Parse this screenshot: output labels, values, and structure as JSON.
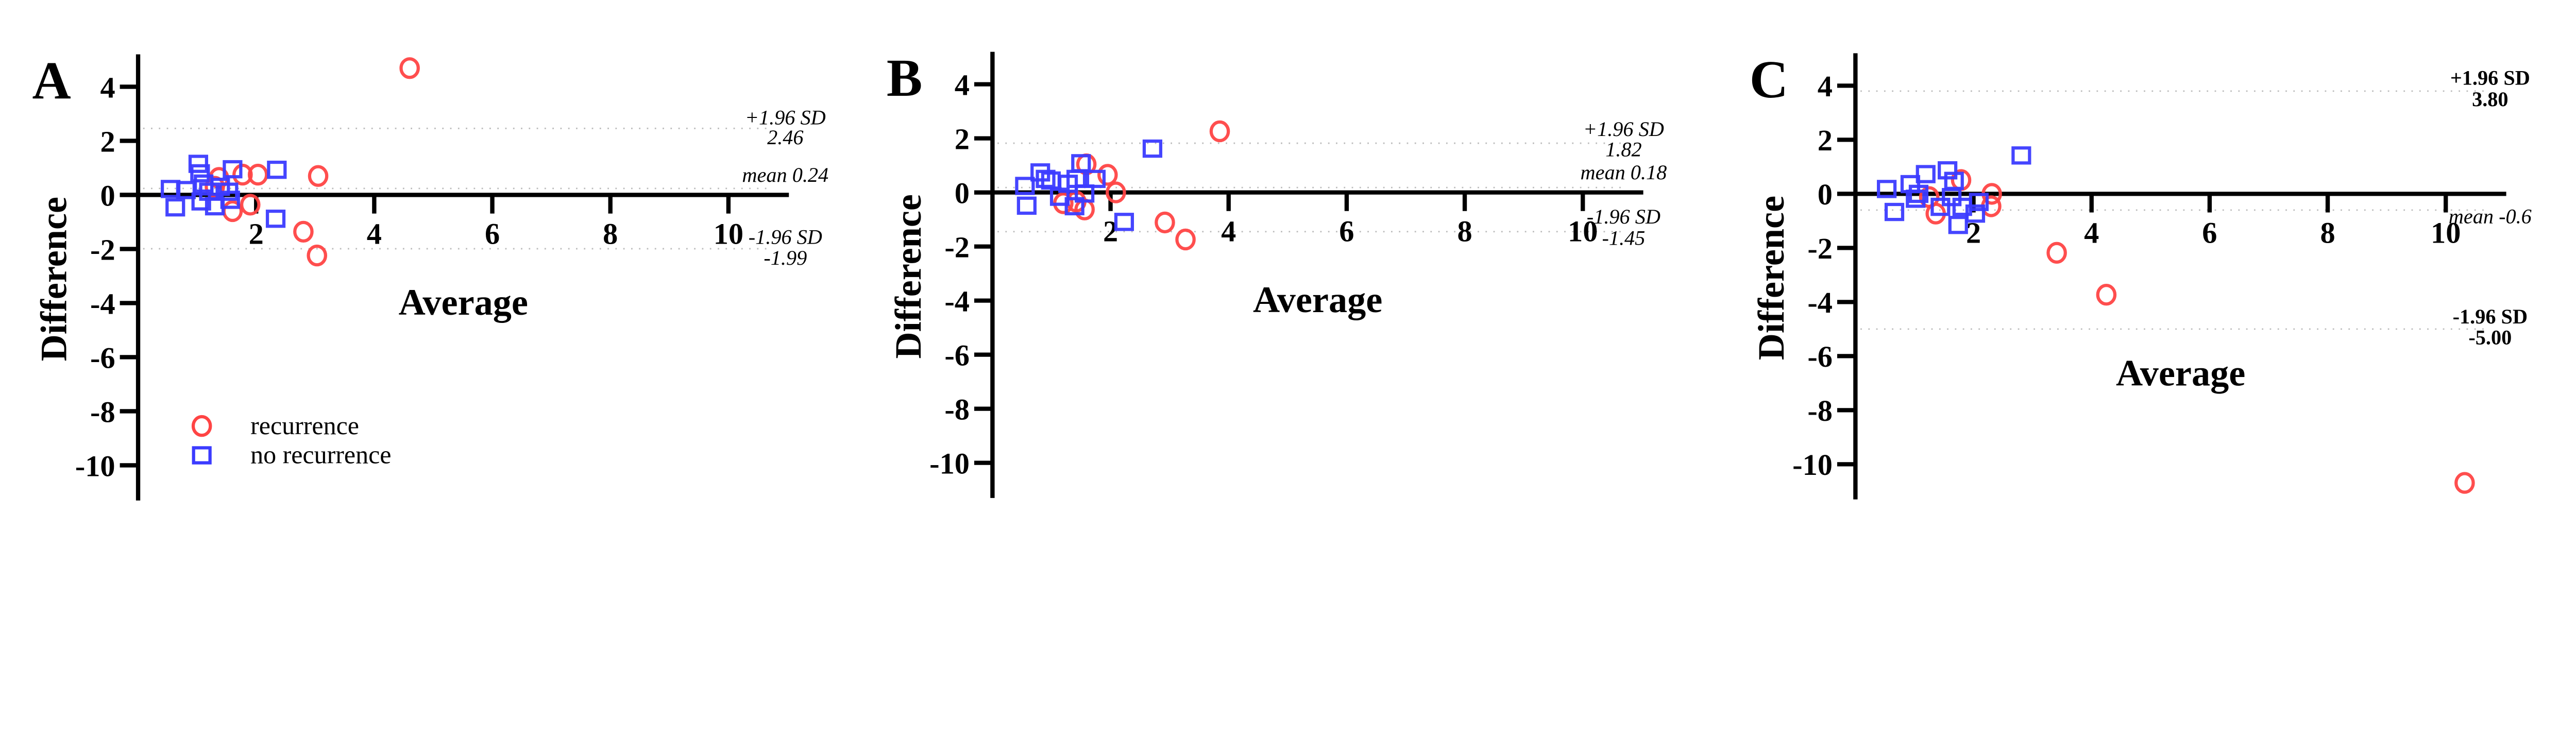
{
  "colors": {
    "recurrence": "#ff4444",
    "no_recurrence": "#3b3bff",
    "axis": "#000000",
    "reference_line": "#bbbbbb"
  },
  "legend": {
    "placement": "bottom-left of panel A",
    "items": [
      {
        "label": "recurrence",
        "marker": "circle"
      },
      {
        "label": "no recurrence",
        "marker": "square"
      }
    ]
  },
  "chart_data": [
    {
      "type": "scatter",
      "panel_label": "A",
      "xlabel": "Average",
      "ylabel": "Difference",
      "xlim": [
        0,
        11
      ],
      "ylim": [
        -11,
        5
      ],
      "x_ticks": [
        "2",
        "4",
        "6",
        "8",
        "10"
      ],
      "y_ticks": [
        "4",
        "2",
        "0",
        "-2",
        "-4",
        "-6",
        "-8",
        "-10"
      ],
      "grid": false,
      "reference_lines": [
        {
          "name": "+1.96 SD",
          "label": "+1.96 SD",
          "value_label": "2.46",
          "y": 2.46
        },
        {
          "name": "mean",
          "label": "mean 0.24",
          "y": 0.24
        },
        {
          "name": "-1.96 SD",
          "label": "-1.96 SD",
          "value_label": "-1.99",
          "y": -1.99
        }
      ],
      "series": [
        {
          "name": "recurrence",
          "marker": "circle",
          "points": [
            [
              4.6,
              4.69
            ],
            [
              3.05,
              0.7
            ],
            [
              2.03,
              0.75
            ],
            [
              1.77,
              0.75
            ],
            [
              1.37,
              0.63
            ],
            [
              1.3,
              0.3
            ],
            [
              1.9,
              -0.36
            ],
            [
              1.6,
              -0.6
            ],
            [
              2.8,
              -1.36
            ],
            [
              3.03,
              -2.24
            ]
          ]
        },
        {
          "name": "no recurrence",
          "marker": "square",
          "points": [
            [
              1.02,
              1.15
            ],
            [
              1.05,
              0.8
            ],
            [
              1.6,
              0.95
            ],
            [
              2.35,
              0.93
            ],
            [
              0.55,
              0.22
            ],
            [
              0.81,
              0.18
            ],
            [
              0.63,
              -0.46
            ],
            [
              1.07,
              -0.24
            ],
            [
              1.3,
              -0.42
            ],
            [
              1.56,
              -0.18
            ],
            [
              2.33,
              -0.88
            ],
            [
              1.2,
              0.12
            ],
            [
              1.39,
              0.3
            ],
            [
              1.53,
              0.12
            ],
            [
              1.11,
              0.42
            ]
          ]
        }
      ]
    },
    {
      "type": "scatter",
      "panel_label": "B",
      "xlabel": "Average",
      "ylabel": "Difference",
      "xlim": [
        0,
        11
      ],
      "ylim": [
        -11,
        5
      ],
      "x_ticks": [
        "2",
        "4",
        "6",
        "8",
        "10"
      ],
      "y_ticks": [
        "4",
        "2",
        "0",
        "-2",
        "-4",
        "-6",
        "-8",
        "-10"
      ],
      "grid": false,
      "reference_lines": [
        {
          "name": "+1.96 SD",
          "label": "+1.96 SD",
          "value_label": "1.82",
          "y": 1.82
        },
        {
          "name": "mean",
          "label": "mean 0.18",
          "y": 0.18
        },
        {
          "name": "-1.96 SD",
          "label": "-1.96 SD",
          "value_label": "-1.45",
          "y": -1.45
        }
      ],
      "series": [
        {
          "name": "recurrence",
          "marker": "circle",
          "points": [
            [
              3.85,
              2.26
            ],
            [
              1.59,
              1.04
            ],
            [
              1.95,
              0.65
            ],
            [
              2.09,
              0.0
            ],
            [
              1.2,
              -0.4
            ],
            [
              1.56,
              -0.63
            ],
            [
              1.42,
              -0.34
            ],
            [
              2.92,
              -1.11
            ],
            [
              3.27,
              -1.74
            ]
          ]
        },
        {
          "name": "no recurrence",
          "marker": "square",
          "points": [
            [
              2.71,
              1.62
            ],
            [
              1.5,
              1.08
            ],
            [
              0.81,
              0.74
            ],
            [
              0.55,
              0.24
            ],
            [
              0.58,
              -0.49
            ],
            [
              2.23,
              -1.09
            ],
            [
              1.14,
              -0.16
            ],
            [
              1.39,
              -0.51
            ],
            [
              1.75,
              0.5
            ],
            [
              0.99,
              0.44
            ],
            [
              1.28,
              0.32
            ],
            [
              1.56,
              -0.04
            ],
            [
              1.42,
              0.5
            ],
            [
              0.9,
              0.5
            ]
          ]
        }
      ]
    },
    {
      "type": "scatter",
      "panel_label": "C",
      "xlabel": "Average",
      "ylabel": "Difference",
      "xlim": [
        0,
        11
      ],
      "ylim": [
        -11,
        5
      ],
      "x_ticks": [
        "2",
        "4",
        "6",
        "8",
        "10"
      ],
      "y_ticks": [
        "4",
        "2",
        "0",
        "-2",
        "-4",
        "-6",
        "-8",
        "-10"
      ],
      "grid": false,
      "reference_lines": [
        {
          "name": "+1.96 SD",
          "label": "+1.96 SD",
          "value_label": "3.80",
          "y": 3.8
        },
        {
          "name": "mean",
          "label": "mean -0.6",
          "y": -0.6
        },
        {
          "name": "-1.96 SD",
          "label": "-1.96 SD",
          "value_label": "-5.00",
          "y": -5.0
        }
      ],
      "series": [
        {
          "name": "recurrence",
          "marker": "circle",
          "points": [
            [
              10.32,
              -10.69
            ],
            [
              4.25,
              -3.73
            ],
            [
              3.41,
              -2.18
            ],
            [
              1.79,
              0.51
            ],
            [
              2.31,
              0.0
            ],
            [
              2.3,
              -0.46
            ],
            [
              1.36,
              -0.73
            ],
            [
              1.25,
              -0.12
            ]
          ]
        },
        {
          "name": "no recurrence",
          "marker": "square",
          "points": [
            [
              2.81,
              1.42
            ],
            [
              1.19,
              0.73
            ],
            [
              1.56,
              0.87
            ],
            [
              0.53,
              0.18
            ],
            [
              0.66,
              -0.67
            ],
            [
              0.93,
              0.36
            ],
            [
              1.07,
              0.0
            ],
            [
              1.74,
              -1.15
            ],
            [
              2.03,
              -0.73
            ],
            [
              1.81,
              -0.48
            ],
            [
              1.44,
              -0.48
            ],
            [
              1.63,
              -0.12
            ],
            [
              2.09,
              -0.3
            ],
            [
              1.02,
              -0.18
            ],
            [
              1.67,
              0.48
            ]
          ]
        }
      ]
    }
  ]
}
